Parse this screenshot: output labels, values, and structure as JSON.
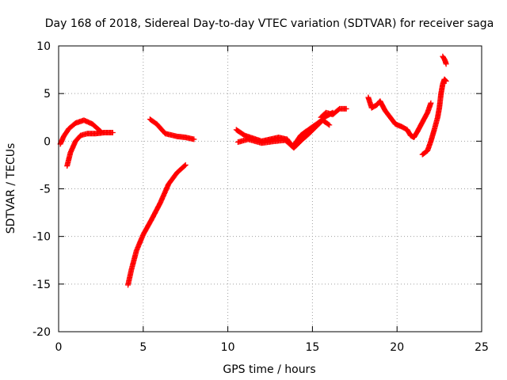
{
  "chart_data": {
    "type": "scatter",
    "title": "Day 168 of 2018, Sidereal Day-to-day VTEC variation (SDTVAR) for receiver saga",
    "xlabel": "GPS time / hours",
    "ylabel": "SDTVAR / TECUs",
    "xlim": [
      0,
      25
    ],
    "ylim": [
      -20,
      10
    ],
    "xticks": [
      0,
      5,
      10,
      15,
      20,
      25
    ],
    "yticks": [
      -20,
      -15,
      -10,
      -5,
      0,
      5,
      10
    ],
    "grid": true,
    "marker": "plus",
    "color": "#ff0000",
    "series": [
      {
        "x": [
          0.1,
          0.3,
          0.6,
          1.0,
          1.5,
          2.0,
          2.5
        ],
        "y": [
          -0.3,
          0.5,
          1.3,
          1.9,
          2.2,
          1.8,
          1.0
        ]
      },
      {
        "x": [
          0.5,
          0.7,
          1.0,
          1.3,
          1.7,
          2.2,
          2.7,
          3.2
        ],
        "y": [
          -2.6,
          -1.2,
          0.0,
          0.6,
          0.8,
          0.8,
          0.9,
          0.9
        ]
      },
      {
        "x": [
          4.1,
          4.3,
          4.6,
          5.0,
          5.5,
          6.0,
          6.5,
          7.0,
          7.5
        ],
        "y": [
          -15.1,
          -13.5,
          -11.5,
          -9.8,
          -8.2,
          -6.5,
          -4.5,
          -3.3,
          -2.5
        ]
      },
      {
        "x": [
          5.4,
          5.8,
          6.3,
          7.0,
          7.5,
          8.0
        ],
        "y": [
          2.3,
          1.8,
          0.8,
          0.5,
          0.4,
          0.2
        ]
      },
      {
        "x": [
          10.5,
          11.0,
          11.5,
          12.0,
          12.5,
          13.0,
          13.5,
          13.8,
          14.0,
          14.3,
          14.6,
          15.0,
          15.4,
          15.8,
          16.2
        ],
        "y": [
          1.2,
          0.6,
          0.3,
          0.0,
          0.2,
          0.4,
          0.2,
          -0.5,
          -0.2,
          0.6,
          1.0,
          1.5,
          2.0,
          2.6,
          3.0
        ]
      },
      {
        "x": [
          10.6,
          11.2,
          12.0,
          12.8,
          13.4,
          13.9,
          14.3,
          14.8,
          15.2,
          15.6,
          16.0
        ],
        "y": [
          -0.1,
          0.2,
          -0.2,
          0.0,
          0.1,
          -0.7,
          0.0,
          0.8,
          1.5,
          2.2,
          1.7
        ]
      },
      {
        "x": [
          15.5,
          15.8,
          16.2,
          16.6,
          17.0
        ],
        "y": [
          2.5,
          3.0,
          2.8,
          3.4,
          3.4
        ]
      },
      {
        "x": [
          18.3,
          18.5,
          18.8,
          19.0,
          19.3,
          19.6,
          19.9,
          20.3,
          20.6,
          20.8,
          21.0,
          21.2,
          21.5,
          21.8,
          22.0
        ],
        "y": [
          4.6,
          3.5,
          3.8,
          4.2,
          3.2,
          2.5,
          1.8,
          1.5,
          1.2,
          0.6,
          0.4,
          1.0,
          2.0,
          3.0,
          4.0
        ]
      },
      {
        "x": [
          21.5,
          21.8,
          22.0,
          22.2,
          22.4,
          22.5,
          22.6,
          22.7,
          22.8,
          22.9
        ],
        "y": [
          -1.4,
          -1.0,
          0.0,
          1.2,
          2.5,
          3.5,
          5.0,
          6.0,
          6.5,
          6.3
        ]
      },
      {
        "x": [
          22.7,
          22.8,
          22.85,
          22.9
        ],
        "y": [
          8.9,
          8.6,
          8.4,
          8.1
        ]
      }
    ]
  }
}
